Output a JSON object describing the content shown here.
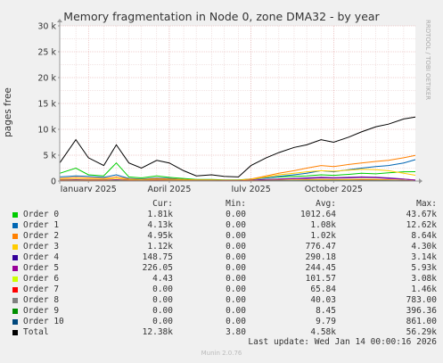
{
  "title": "Memory fragmentation in Node 0, zone DMA32 - by year",
  "watermark": "RRDTOOL / TOBI OETIKER",
  "footer": "Munin 2.0.76",
  "last_update": "Last update: Wed Jan 14 00:00:16 2026",
  "colors": {
    "background": "#f0f0f0",
    "plot_bg": "#ffffff",
    "grid_minor": "#e6c8c8",
    "grid_major": "#e0a0a0",
    "axis": "#999999"
  },
  "chart_data": {
    "type": "line",
    "title": "Memory fragmentation in Node 0, zone DMA32 - by year",
    "ylabel": "pages free",
    "xlabel": "",
    "ylim": [
      0,
      30000
    ],
    "yticks": [
      0,
      5000,
      10000,
      15000,
      20000,
      25000,
      30000
    ],
    "ytick_labels": [
      "0",
      "5 k",
      "10 k",
      "15 k",
      "20 k",
      "25 k",
      "30 k"
    ],
    "x_range": [
      "2024-12-14",
      "2026-01-14"
    ],
    "xtick_labels": [
      "January 2025",
      "April 2025",
      "July 2025",
      "October 2025"
    ],
    "xtick_dates": [
      "2025-01-15",
      "2025-04-15",
      "2025-07-15",
      "2025-10-15"
    ],
    "grid": true,
    "legend_position": "bottom",
    "legend_headers": {
      "cur": "Cur:",
      "min": "Min:",
      "avg": "Avg:",
      "max": "Max:"
    },
    "x_months": [
      "2024-12-14",
      "2025-01-01",
      "2025-01-15",
      "2025-02-01",
      "2025-02-15",
      "2025-03-01",
      "2025-03-15",
      "2025-04-01",
      "2025-04-15",
      "2025-05-01",
      "2025-05-15",
      "2025-06-01",
      "2025-06-15",
      "2025-07-01",
      "2025-07-15",
      "2025-08-01",
      "2025-08-15",
      "2025-09-01",
      "2025-09-15",
      "2025-10-01",
      "2025-10-15",
      "2025-11-01",
      "2025-11-15",
      "2025-12-01",
      "2025-12-15",
      "2026-01-01",
      "2026-01-14"
    ],
    "series": [
      {
        "name": "Order 0",
        "color": "#00cc00",
        "cur": "1.81k",
        "min": "0.00",
        "avg": "1012.64",
        "max": "43.67k",
        "values": [
          1500,
          2500,
          1200,
          1000,
          3500,
          800,
          600,
          1000,
          700,
          500,
          300,
          300,
          200,
          200,
          400,
          600,
          800,
          900,
          1000,
          1200,
          1100,
          1300,
          1500,
          1400,
          1600,
          1800,
          1810
        ]
      },
      {
        "name": "Order 1",
        "color": "#0066b3",
        "cur": "4.13k",
        "min": "0.00",
        "avg": "1.08k",
        "max": "12.62k",
        "values": [
          800,
          1000,
          900,
          700,
          1200,
          500,
          400,
          600,
          500,
          300,
          200,
          200,
          150,
          150,
          300,
          600,
          900,
          1200,
          1500,
          2000,
          1800,
          2200,
          2500,
          2800,
          3000,
          3500,
          4130
        ]
      },
      {
        "name": "Order 2",
        "color": "#ff8000",
        "cur": "4.95k",
        "min": "0.00",
        "avg": "1.02k",
        "max": "8.64k",
        "values": [
          500,
          700,
          600,
          500,
          800,
          400,
          300,
          500,
          400,
          300,
          200,
          200,
          150,
          150,
          400,
          1000,
          1500,
          2000,
          2500,
          3000,
          2800,
          3200,
          3500,
          3800,
          4000,
          4500,
          4950
        ]
      },
      {
        "name": "Order 3",
        "color": "#ffcc00",
        "cur": "1.12k",
        "min": "0.00",
        "avg": "776.47",
        "max": "4.30k",
        "values": [
          300,
          400,
          350,
          300,
          500,
          250,
          200,
          300,
          250,
          200,
          150,
          150,
          100,
          100,
          300,
          800,
          1200,
          1500,
          1800,
          2000,
          1900,
          2100,
          2300,
          2200,
          2000,
          1500,
          1120
        ]
      },
      {
        "name": "Order 4",
        "color": "#330099",
        "cur": "148.75",
        "min": "0.00",
        "avg": "290.18",
        "max": "3.14k",
        "values": [
          150,
          200,
          180,
          150,
          250,
          120,
          100,
          150,
          120,
          100,
          80,
          80,
          60,
          60,
          150,
          300,
          400,
          500,
          600,
          700,
          650,
          700,
          800,
          750,
          600,
          400,
          149
        ]
      },
      {
        "name": "Order 5",
        "color": "#990099",
        "cur": "226.05",
        "min": "0.00",
        "avg": "244.45",
        "max": "5.93k",
        "values": [
          100,
          150,
          130,
          110,
          200,
          90,
          70,
          110,
          90,
          70,
          60,
          60,
          50,
          50,
          120,
          250,
          350,
          450,
          500,
          600,
          550,
          600,
          700,
          650,
          500,
          350,
          226
        ]
      },
      {
        "name": "Order 6",
        "color": "#ccff00",
        "cur": "4.43",
        "min": "0.00",
        "avg": "101.57",
        "max": "3.08k",
        "values": [
          50,
          80,
          70,
          60,
          100,
          50,
          40,
          60,
          50,
          40,
          30,
          30,
          20,
          20,
          60,
          120,
          180,
          220,
          260,
          300,
          280,
          300,
          340,
          320,
          250,
          150,
          4
        ]
      },
      {
        "name": "Order 7",
        "color": "#ff0000",
        "cur": "0.00",
        "min": "0.00",
        "avg": "65.84",
        "max": "1.46k",
        "values": [
          30,
          50,
          40,
          30,
          60,
          30,
          20,
          30,
          25,
          20,
          15,
          15,
          10,
          10,
          40,
          80,
          110,
          140,
          160,
          180,
          170,
          180,
          200,
          190,
          150,
          80,
          0
        ]
      },
      {
        "name": "Order 8",
        "color": "#808080",
        "cur": "0.00",
        "min": "0.00",
        "avg": "40.03",
        "max": "783.00",
        "values": [
          20,
          30,
          25,
          20,
          40,
          20,
          15,
          20,
          15,
          12,
          10,
          10,
          8,
          8,
          25,
          50,
          70,
          90,
          100,
          110,
          100,
          110,
          120,
          110,
          90,
          50,
          0
        ]
      },
      {
        "name": "Order 9",
        "color": "#008f00",
        "cur": "0.00",
        "min": "0.00",
        "avg": "8.45",
        "max": "396.36",
        "values": [
          5,
          8,
          6,
          5,
          10,
          5,
          4,
          5,
          4,
          3,
          2,
          2,
          2,
          2,
          5,
          10,
          14,
          18,
          20,
          22,
          20,
          22,
          24,
          22,
          18,
          10,
          0
        ]
      },
      {
        "name": "Order 10",
        "color": "#00487d",
        "cur": "0.00",
        "min": "0.00",
        "avg": "9.79",
        "max": "861.00",
        "values": [
          5,
          8,
          6,
          5,
          10,
          5,
          4,
          5,
          4,
          3,
          2,
          2,
          2,
          2,
          5,
          10,
          14,
          18,
          20,
          22,
          20,
          22,
          24,
          22,
          18,
          10,
          0
        ]
      },
      {
        "name": "Total",
        "color": "#000000",
        "cur": "12.38k",
        "min": "3.80",
        "avg": "4.58k",
        "max": "56.29k",
        "values": [
          3500,
          8000,
          4500,
          3000,
          7000,
          3500,
          2500,
          4000,
          3500,
          2000,
          1000,
          1200,
          900,
          800,
          3000,
          4500,
          5500,
          6500,
          7000,
          8000,
          7500,
          8500,
          9500,
          10500,
          11000,
          12000,
          12380
        ]
      }
    ]
  }
}
